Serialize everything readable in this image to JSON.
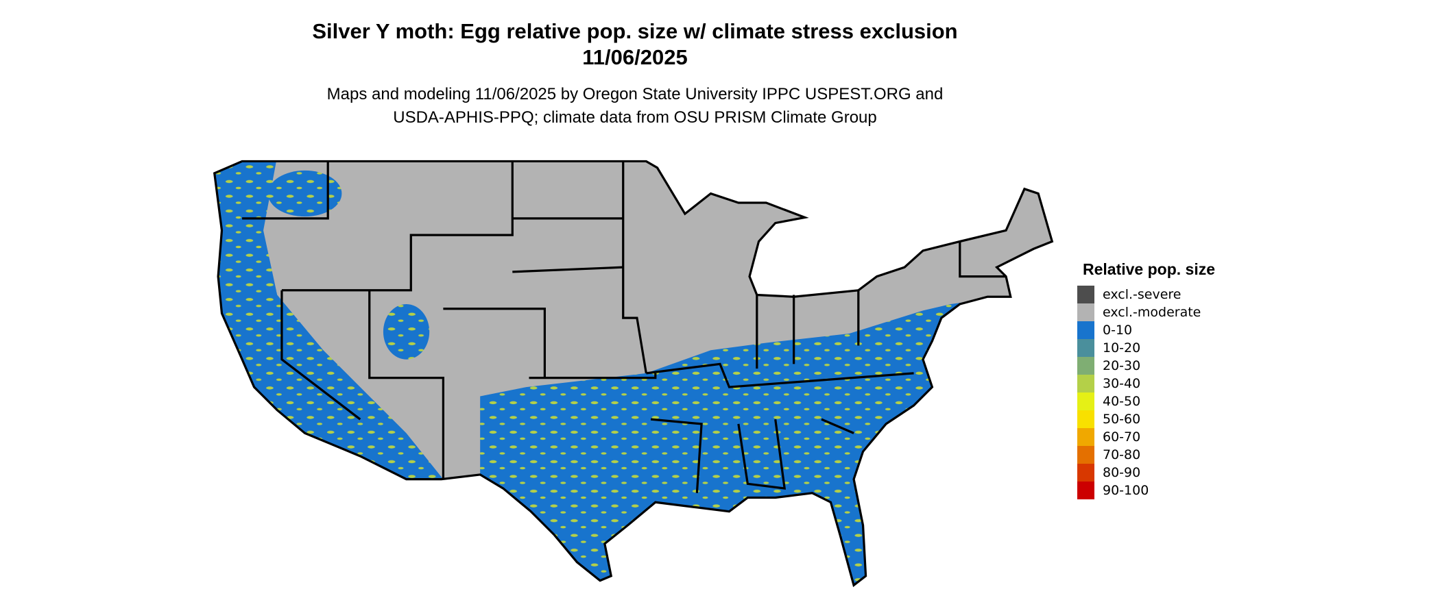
{
  "title_line1": "Silver Y moth: Egg relative pop. size w/ climate stress exclusion",
  "title_line2": "11/06/2025",
  "subtitle_line1": "Maps and modeling 11/06/2025 by Oregon State University IPPC USPEST.ORG and",
  "subtitle_line2": "USDA-APHIS-PPQ; climate data from OSU PRISM Climate Group",
  "legend": {
    "title": "Relative pop. size",
    "items": [
      {
        "label": "excl.-severe",
        "color": "#4d4d4d"
      },
      {
        "label": "excl.-moderate",
        "color": "#b3b3b3"
      },
      {
        "label": "0-10",
        "color": "#1874cd"
      },
      {
        "label": "10-20",
        "color": "#4a8f9c"
      },
      {
        "label": "20-30",
        "color": "#7fae73"
      },
      {
        "label": "30-40",
        "color": "#b4d048"
      },
      {
        "label": "40-50",
        "color": "#e5f016"
      },
      {
        "label": "50-60",
        "color": "#f8e000"
      },
      {
        "label": "60-70",
        "color": "#f0a800"
      },
      {
        "label": "70-80",
        "color": "#e47000"
      },
      {
        "label": "80-90",
        "color": "#d83800"
      },
      {
        "label": "90-100",
        "color": "#cc0000"
      }
    ]
  }
}
